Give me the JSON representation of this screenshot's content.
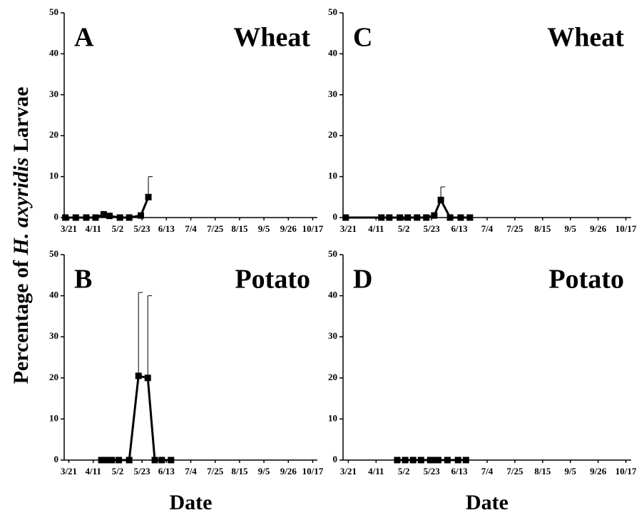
{
  "ylabel": [
    "Percentage of",
    "H. axyridis",
    "Larvae"
  ],
  "chart_data": [
    {
      "type": "line",
      "panel_label": "A",
      "title": "Wheat",
      "color": "#000000",
      "x": [
        77,
        86,
        95,
        103,
        110,
        115,
        124,
        132,
        142,
        148.5
      ],
      "values": [
        0,
        0,
        0,
        0,
        0.8,
        0.4,
        0,
        0,
        0.5,
        5
      ],
      "errors": [
        null,
        null,
        null,
        null,
        null,
        null,
        null,
        null,
        null,
        5
      ],
      "xlim": [
        76,
        294
      ],
      "ylim": [
        0,
        50
      ],
      "yticks": [
        0,
        10,
        20,
        30,
        40,
        50
      ],
      "xticks": [
        {
          "value": 80,
          "label": "3/21"
        },
        {
          "value": 101,
          "label": "4/11"
        },
        {
          "value": 122,
          "label": "5/2"
        },
        {
          "value": 143,
          "label": "5/23"
        },
        {
          "value": 164,
          "label": "6/13"
        },
        {
          "value": 185,
          "label": "7/4"
        },
        {
          "value": 206,
          "label": "7/25"
        },
        {
          "value": 227,
          "label": "8/15"
        },
        {
          "value": 248,
          "label": "9/5"
        },
        {
          "value": 269,
          "label": "9/26"
        },
        {
          "value": 290,
          "label": "10/17"
        }
      ]
    },
    {
      "type": "line",
      "panel_label": "C",
      "title": "Wheat",
      "color": "#000000",
      "x": [
        78,
        105,
        111,
        119,
        125,
        132,
        139,
        145,
        150,
        157,
        165,
        172
      ],
      "values": [
        0,
        0,
        0,
        0,
        0,
        0,
        0,
        0.5,
        4.3,
        0,
        0,
        0
      ],
      "errors": [
        null,
        null,
        null,
        null,
        null,
        null,
        null,
        null,
        3.2,
        null,
        null,
        null
      ],
      "xlim": [
        76,
        294
      ],
      "ylim": [
        0,
        50
      ],
      "yticks": [
        0,
        10,
        20,
        30,
        40,
        50
      ],
      "xticks": [
        {
          "value": 80,
          "label": "3/21"
        },
        {
          "value": 101,
          "label": "4/11"
        },
        {
          "value": 122,
          "label": "5/2"
        },
        {
          "value": 143,
          "label": "5/23"
        },
        {
          "value": 164,
          "label": "6/13"
        },
        {
          "value": 185,
          "label": "7/4"
        },
        {
          "value": 206,
          "label": "7/25"
        },
        {
          "value": 227,
          "label": "8/15"
        },
        {
          "value": 248,
          "label": "9/5"
        },
        {
          "value": 269,
          "label": "9/26"
        },
        {
          "value": 290,
          "label": "10/17"
        }
      ]
    },
    {
      "type": "line",
      "panel_label": "B",
      "title": "Potato",
      "color": "#000000",
      "xlabel": "Date",
      "x": [
        108,
        113,
        117,
        123,
        132,
        140,
        148,
        154,
        160,
        168
      ],
      "values": [
        0,
        0,
        0,
        0,
        0,
        20.5,
        20,
        0,
        0,
        0
      ],
      "errors": [
        null,
        null,
        null,
        null,
        null,
        20.3,
        20,
        null,
        null,
        null
      ],
      "xlim": [
        76,
        294
      ],
      "ylim": [
        0,
        50
      ],
      "yticks": [
        0,
        10,
        20,
        30,
        40,
        50
      ],
      "xticks": [
        {
          "value": 80,
          "label": "3/21"
        },
        {
          "value": 101,
          "label": "4/11"
        },
        {
          "value": 122,
          "label": "5/2"
        },
        {
          "value": 143,
          "label": "5/23"
        },
        {
          "value": 164,
          "label": "6/13"
        },
        {
          "value": 185,
          "label": "7/4"
        },
        {
          "value": 206,
          "label": "7/25"
        },
        {
          "value": 227,
          "label": "8/15"
        },
        {
          "value": 248,
          "label": "9/5"
        },
        {
          "value": 269,
          "label": "9/26"
        },
        {
          "value": 290,
          "label": "10/17"
        }
      ]
    },
    {
      "type": "line",
      "panel_label": "D",
      "title": "Potato",
      "color": "#000000",
      "xlabel": "Date",
      "x": [
        117,
        123,
        129,
        135,
        142,
        144,
        148,
        155,
        163,
        169
      ],
      "values": [
        0,
        0,
        0,
        0,
        0,
        0,
        0,
        0,
        0,
        0
      ],
      "xlim": [
        76,
        294
      ],
      "ylim": [
        0,
        50
      ],
      "yticks": [
        0,
        10,
        20,
        30,
        40,
        50
      ],
      "xticks": [
        {
          "value": 80,
          "label": "3/21"
        },
        {
          "value": 101,
          "label": "4/11"
        },
        {
          "value": 122,
          "label": "5/2"
        },
        {
          "value": 143,
          "label": "5/23"
        },
        {
          "value": 164,
          "label": "6/13"
        },
        {
          "value": 185,
          "label": "7/4"
        },
        {
          "value": 206,
          "label": "7/25"
        },
        {
          "value": 227,
          "label": "8/15"
        },
        {
          "value": 248,
          "label": "9/5"
        },
        {
          "value": 269,
          "label": "9/26"
        },
        {
          "value": 290,
          "label": "10/17"
        }
      ]
    }
  ]
}
